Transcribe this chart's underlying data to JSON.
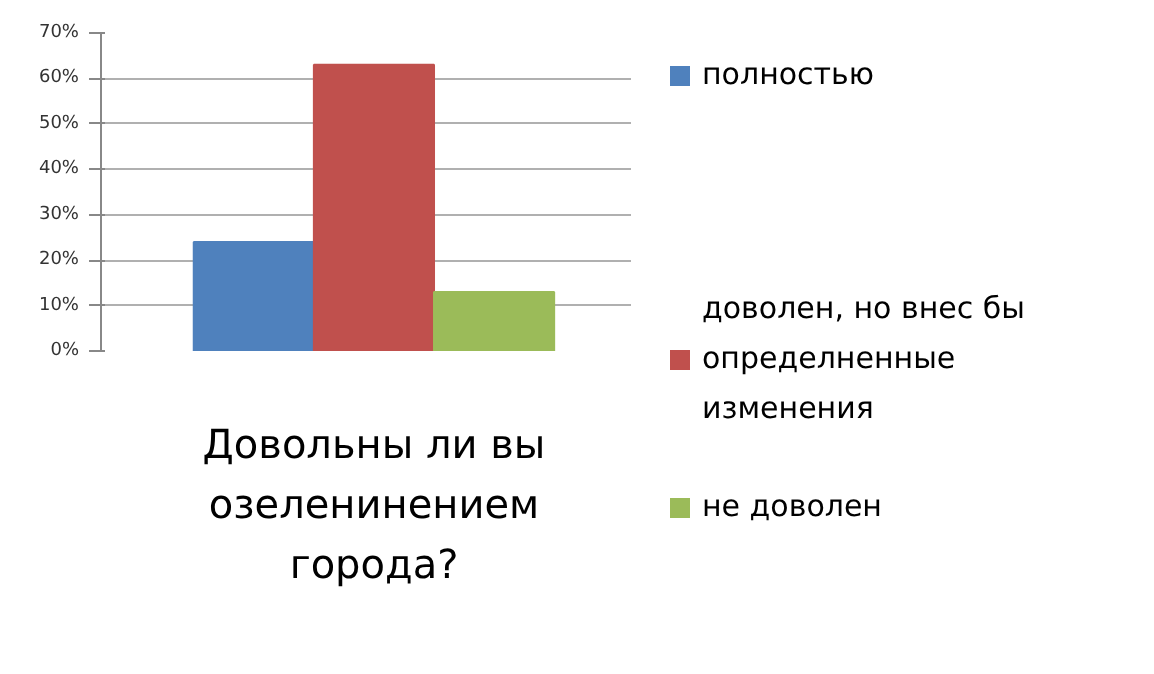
{
  "chart_data": {
    "type": "bar",
    "categories": [
      "Довольны ли вы озеленинением города?"
    ],
    "series": [
      {
        "name": "полностью",
        "color": "#4f81bd",
        "values": [
          24
        ]
      },
      {
        "name": "доволен, но внес бы определненные изменения",
        "color": "#c0504d",
        "values": [
          63
        ]
      },
      {
        "name": "не доволен",
        "color": "#9bbb59",
        "values": [
          13
        ]
      }
    ],
    "ylim": [
      0,
      70
    ],
    "yticks": [
      {
        "value": 0,
        "label": "0%"
      },
      {
        "value": 10,
        "label": "10%"
      },
      {
        "value": 20,
        "label": "20%"
      },
      {
        "value": 30,
        "label": "30%"
      },
      {
        "value": 40,
        "label": "40%"
      },
      {
        "value": 50,
        "label": "50%"
      },
      {
        "value": 60,
        "label": "60%"
      },
      {
        "value": 70,
        "label": "70%"
      }
    ],
    "grid": "y",
    "legend": "right"
  }
}
